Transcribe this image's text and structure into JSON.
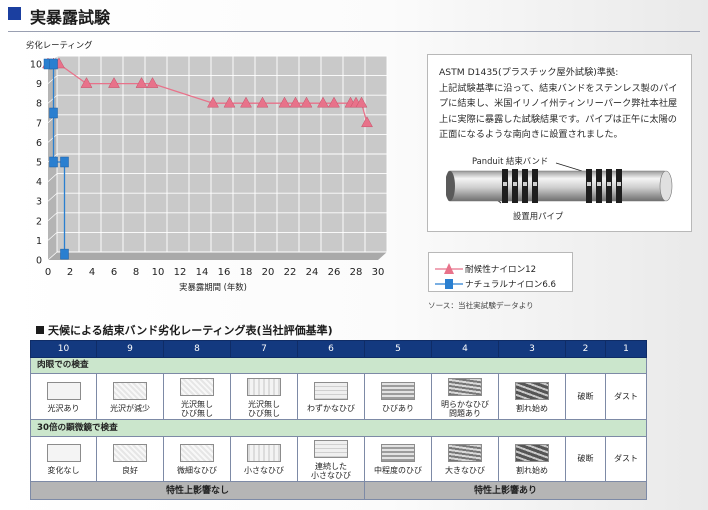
{
  "page": {
    "title": "実暴露試験"
  },
  "chart_data": {
    "type": "line",
    "ylabel": "劣化レーティング",
    "xlabel": "実暴露期間 (年数)",
    "xlim": [
      0,
      30
    ],
    "ylim": [
      0,
      10
    ],
    "xticks": [
      "0",
      "2",
      "4",
      "6",
      "8",
      "10",
      "12",
      "14",
      "16",
      "18",
      "20",
      "22",
      "24",
      "26",
      "28",
      "30"
    ],
    "yticks": [
      "0",
      "1",
      "2",
      "3",
      "4",
      "5",
      "6",
      "7",
      "8",
      "9",
      "10"
    ],
    "grid": true,
    "legend_position": "bottom-right",
    "series": [
      {
        "name": "耐候性ナイロン12",
        "color": "#e8728a",
        "marker": "triangle",
        "x": [
          0,
          0.5,
          1,
          3.5,
          6,
          8.5,
          9.5,
          15,
          16.5,
          18,
          19.5,
          21.5,
          22.5,
          23.5,
          25,
          26,
          27.5,
          28,
          28.5,
          29
        ],
        "y": [
          10,
          10,
          10,
          9,
          9,
          9,
          9,
          8,
          8,
          8,
          8,
          8,
          8,
          8,
          8,
          8,
          8,
          8,
          8,
          7
        ]
      },
      {
        "name": "ナチュラルナイロン6.6",
        "color": "#2a7fd0",
        "marker": "square",
        "x": [
          0,
          0.5,
          0.5,
          0.5,
          1.5,
          1.5
        ],
        "y": [
          10,
          10,
          7.5,
          5,
          5,
          0.3
        ]
      }
    ]
  },
  "description": {
    "lines": [
      "ASTM D1435(プラスチック屋外試験)準拠:",
      "上記試験基準に沿って、結束バンドをステンレス製のパイ",
      "プに結束し、米国イリノイ州ティンリーパーク弊社本社屋",
      "上に実際に暴露した試験結果です。パイプは正午に太陽の",
      "正面になるような南向きに設置されました。"
    ],
    "label_band": "Panduit 結束バンド",
    "label_pipe": "設置用パイプ"
  },
  "legend": {
    "item1": "耐候性ナイロン12",
    "item2": "ナチュラルナイロン6.6"
  },
  "source": "ソース：当社実試験データより",
  "table": {
    "heading": "天候による結束バンド劣化レーティング表(当社評価基準)",
    "ratings": [
      "10",
      "9",
      "8",
      "7",
      "6",
      "5",
      "4",
      "3",
      "2",
      "1"
    ],
    "section1": "肉眼での検査",
    "row1": [
      "光沢あり",
      "光沢が減少",
      "光沢無し\nひび無し",
      "光沢無し\nひび無し",
      "わずかなひび",
      "ひびあり",
      "明らかなひび\n問題あり",
      "割れ始め",
      "破断",
      "ダスト"
    ],
    "section2": "30倍の顕微鏡で検査",
    "row2": [
      "変化なし",
      "良好",
      "微細なひび",
      "小さなひび",
      "連続した\n小さなひび",
      "中程度のひび",
      "大きなひび",
      "割れ始め",
      "破断",
      "ダスト"
    ],
    "footer_left": "特性上影響なし",
    "footer_right": "特性上影響あり"
  }
}
